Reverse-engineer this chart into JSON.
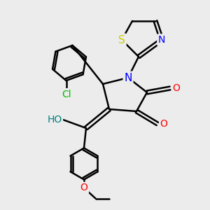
{
  "bg_color": "#ececec",
  "bond_color": "#000000",
  "bond_width": 1.8,
  "atom_colors": {
    "N": "#0000ff",
    "O": "#ff0000",
    "S": "#cccc00",
    "Cl": "#00bb00",
    "HO": "#008080",
    "C": "#000000"
  },
  "font_size": 10,
  "fig_size": [
    3.0,
    3.0
  ],
  "dpi": 100
}
